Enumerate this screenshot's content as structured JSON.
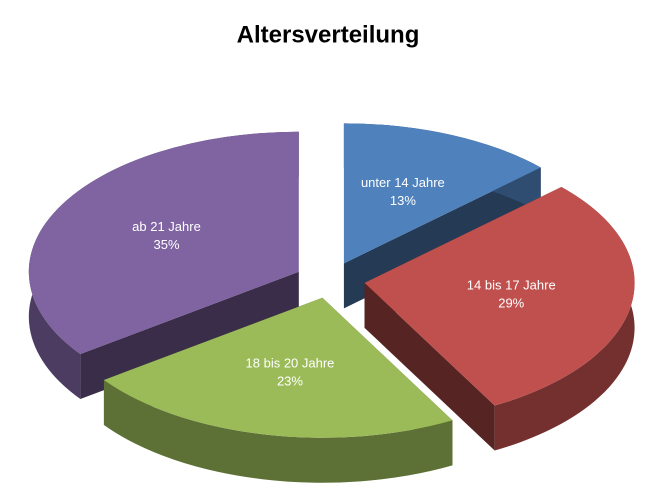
{
  "chart_data": {
    "type": "pie",
    "title": "Altersverteilung",
    "categories": [
      "unter 14 Jahre",
      "14 bis 17 Jahre",
      "18 bis 20 Jahre",
      "ab 21 Jahre"
    ],
    "values": [
      13,
      29,
      23,
      35
    ],
    "value_labels": [
      "13%",
      "29%",
      "23%",
      "35%"
    ],
    "colors": [
      "#4f81bd",
      "#c0504d",
      "#9bbb59",
      "#8064a2"
    ]
  }
}
